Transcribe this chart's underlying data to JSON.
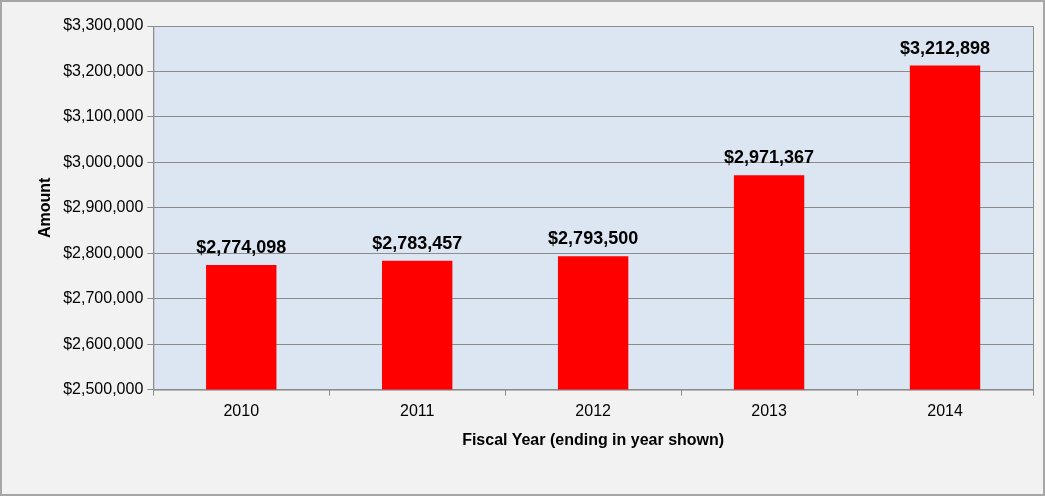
{
  "chart_data": {
    "type": "bar",
    "xlabel": "Fiscal Year (ending in year shown)",
    "ylabel": "Amount",
    "categories": [
      "2010",
      "2011",
      "2012",
      "2013",
      "2014"
    ],
    "values": [
      2774098,
      2783457,
      2793500,
      2971367,
      3212898
    ],
    "value_labels": [
      "$2,774,098",
      "$2,783,457",
      "$2,793,500",
      "$2,971,367",
      "$3,212,898"
    ],
    "color": "#ff0000",
    "ylim": [
      2500000,
      3300000
    ],
    "yticks": [
      {
        "value": 2500000,
        "label": "$2,500,000"
      },
      {
        "value": 2600000,
        "label": "$2,600,000"
      },
      {
        "value": 2700000,
        "label": "$2,700,000"
      },
      {
        "value": 2800000,
        "label": "$2,800,000"
      },
      {
        "value": 2900000,
        "label": "$2,900,000"
      },
      {
        "value": 3000000,
        "label": "$3,000,000"
      },
      {
        "value": 3100000,
        "label": "$3,100,000"
      },
      {
        "value": 3200000,
        "label": "$3,200,000"
      },
      {
        "value": 3300000,
        "label": "$3,300,000"
      }
    ],
    "grid": "y",
    "legend": false
  }
}
